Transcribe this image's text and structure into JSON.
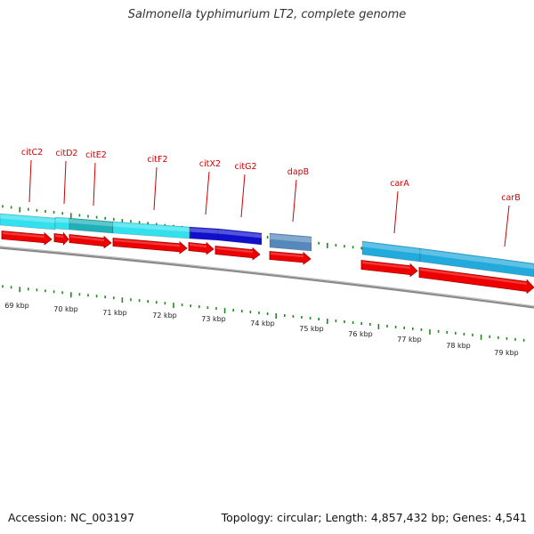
{
  "title": "Salmonella typhimurium LT2, complete genome",
  "footer": {
    "accession": "Accession: NC_003197",
    "summary": "Topology: circular; Length: 4,857,432 bp; Genes: 4,541"
  },
  "colors": {
    "cds": "#ee0000",
    "cds_dark": "#aa0000",
    "cyan": "#33e0ee",
    "teal": "#1fb0b8",
    "blue": "#1010cc",
    "steel": "#5588bb",
    "skyblue": "#22aadd",
    "tick": "#228822",
    "label_line": "#cc0000",
    "backbone": "#8a8a8a"
  },
  "gene_labels": [
    {
      "name": "citC2"
    },
    {
      "name": "citD2"
    },
    {
      "name": "citE2"
    },
    {
      "name": "citF2"
    },
    {
      "name": "citX2"
    },
    {
      "name": "citG2"
    },
    {
      "name": "dapB"
    },
    {
      "name": "carA"
    },
    {
      "name": "carB"
    }
  ],
  "kbp_labels": [
    "69 kbp",
    "70 kbp",
    "71 kbp",
    "72 kbp",
    "73 kbp",
    "74 kbp",
    "75 kbp",
    "76 kbp",
    "77 kbp",
    "78 kbp",
    "79 kbp"
  ]
}
